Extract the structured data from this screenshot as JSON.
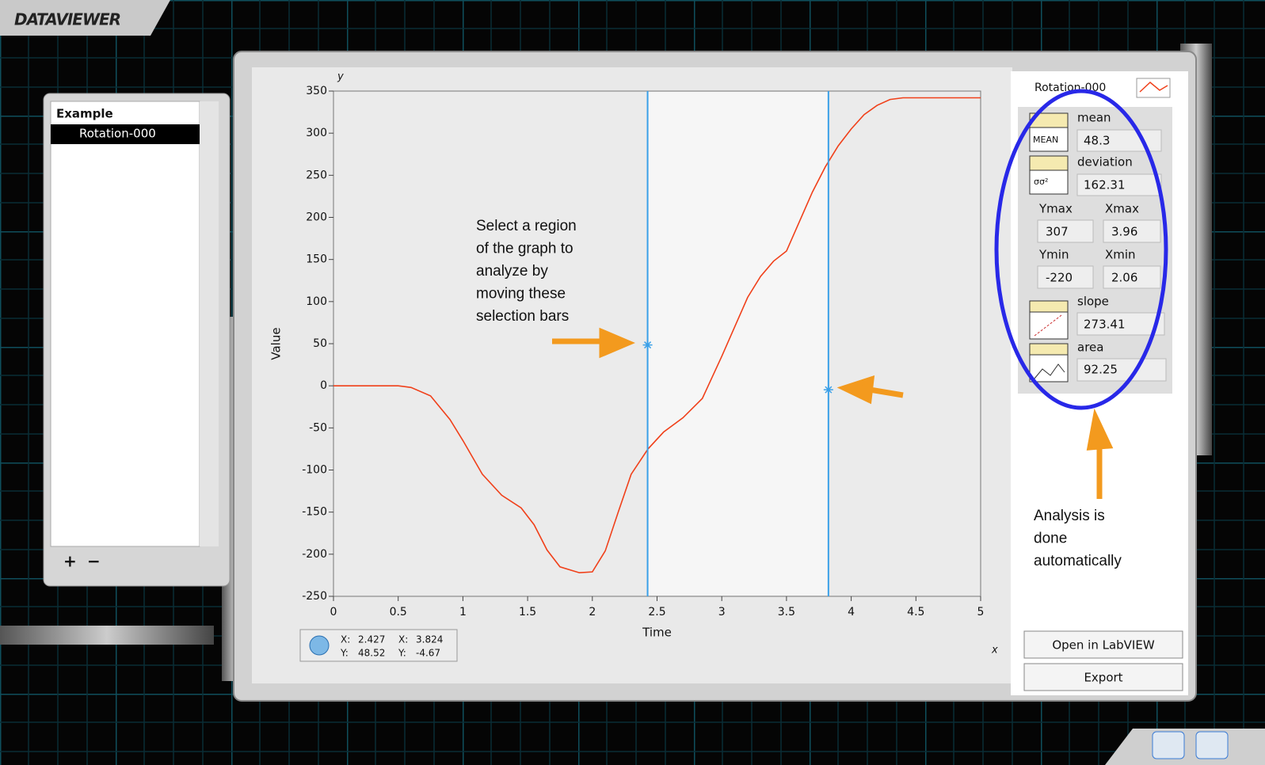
{
  "app_title": "DATAVIEWER",
  "list": {
    "header": "Example",
    "items": [
      "Rotation-000"
    ],
    "add": "+",
    "remove": "−"
  },
  "chart_data": {
    "type": "line",
    "xlabel": "Time",
    "ylabel": "Value",
    "x_axis_letter": "x",
    "y_axis_letter": "y",
    "x": [
      0,
      0.5,
      0.6,
      0.75,
      0.9,
      1.0,
      1.15,
      1.3,
      1.45,
      1.55,
      1.65,
      1.75,
      1.9,
      2.0,
      2.1,
      2.2,
      2.3,
      2.43,
      2.55,
      2.7,
      2.85,
      3.0,
      3.1,
      3.2,
      3.3,
      3.4,
      3.5,
      3.6,
      3.7,
      3.8,
      3.9,
      4.0,
      4.1,
      4.2,
      4.3,
      4.4,
      5.0
    ],
    "series": [
      {
        "name": "Rotation-000",
        "color": "#f0401a",
        "values": [
          0,
          0,
          -2,
          -12,
          -40,
          -65,
          -105,
          -130,
          -145,
          -165,
          -195,
          -215,
          -222,
          -221,
          -196,
          -150,
          -105,
          -75,
          -55,
          -38,
          -15,
          35,
          70,
          105,
          130,
          148,
          160,
          195,
          230,
          260,
          285,
          305,
          322,
          333,
          340,
          342,
          342
        ]
      }
    ],
    "xlim": [
      0,
      5
    ],
    "ylim": [
      -250,
      350
    ],
    "xticks": [
      0,
      0.5,
      1,
      1.5,
      2,
      2.5,
      3,
      3.5,
      4,
      4.5,
      5
    ],
    "yticks": [
      -250,
      -200,
      -150,
      -100,
      -50,
      0,
      50,
      100,
      150,
      200,
      250,
      300,
      350
    ],
    "cursor_color": "#3aa0e8",
    "cursors": [
      {
        "x": 2.427,
        "y": 48.52
      },
      {
        "x": 3.824,
        "y": -4.67
      }
    ],
    "cursor_x_label": "X:",
    "cursor_y_label": "Y:"
  },
  "analysis": {
    "mean_label": "mean",
    "mean": 48.3,
    "deviation_label": "deviation",
    "deviation": 162.31,
    "ymax_label": "Ymax",
    "ymax": 307,
    "xmax_label": "Xmax",
    "xmax": 3.96,
    "ymin_label": "Ymin",
    "ymin": -220,
    "xmin_label": "Xmin",
    "xmin": 2.06,
    "slope_label": "slope",
    "slope": 273.41,
    "area_label": "area",
    "area": 92.25,
    "mean_icon": "MEAN",
    "deviation_icon": "σσ²"
  },
  "annotations": {
    "selection": [
      "Select a region",
      "of the graph to",
      "analyze by",
      "moving these",
      "selection bars"
    ],
    "analysis": [
      "Analysis is",
      "done",
      "automatically"
    ]
  },
  "buttons": {
    "open": "Open in LabVIEW",
    "export": "Export"
  }
}
